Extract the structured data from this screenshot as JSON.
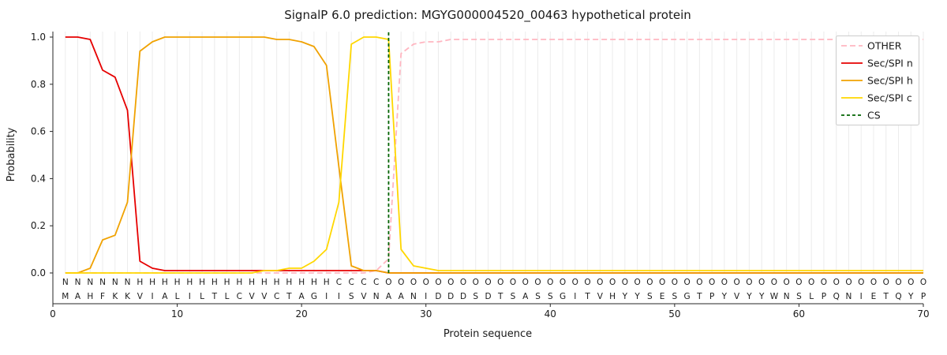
{
  "chart_data": {
    "type": "line",
    "title": "SignalP 6.0 prediction: MGYG000004520_00463 hypothetical protein",
    "xlabel": "Protein sequence",
    "ylabel": "Probability",
    "xlim": [
      0,
      70
    ],
    "ylim": [
      -0.13,
      1.02
    ],
    "xticks": [
      0,
      10,
      20,
      30,
      40,
      50,
      60,
      70
    ],
    "xtick_labels": [
      "0",
      "10",
      "20",
      "30",
      "40",
      "50",
      "60",
      "70"
    ],
    "yticks": [
      0,
      0.2,
      0.4,
      0.6,
      0.8,
      1.0
    ],
    "ytick_labels": [
      "0.0",
      "0.2",
      "0.4",
      "0.6",
      "0.8",
      "1.0"
    ],
    "grid": "vertical-line-per-residue",
    "grid_color": "#ececec",
    "legend_position": "upper-right",
    "x_start": 1,
    "series": [
      {
        "name": "OTHER",
        "color": "#ffb6c1",
        "dash": true,
        "values": [
          0,
          0,
          0,
          0,
          0,
          0,
          0,
          0,
          0,
          0,
          0,
          0,
          0,
          0,
          0,
          0,
          0,
          0,
          0,
          0,
          0,
          0,
          0,
          0,
          0,
          0.01,
          0.06,
          0.93,
          0.97,
          0.98,
          0.98,
          0.99,
          0.99,
          0.99,
          0.99,
          0.99,
          0.99,
          0.99,
          0.99,
          0.99,
          0.99,
          0.99,
          0.99,
          0.99,
          0.99,
          0.99,
          0.99,
          0.99,
          0.99,
          0.99,
          0.99,
          0.99,
          0.99,
          0.99,
          0.99,
          0.99,
          0.99,
          0.99,
          0.99,
          0.99,
          0.99,
          0.99,
          0.99,
          0.99,
          0.99,
          0.99,
          0.99,
          0.99,
          0.99,
          0.99
        ]
      },
      {
        "name": "Sec/SPI n",
        "color": "#e60000",
        "dash": false,
        "values": [
          1,
          1,
          0.99,
          0.86,
          0.83,
          0.69,
          0.05,
          0.02,
          0.01,
          0.01,
          0.01,
          0.01,
          0.01,
          0.01,
          0.01,
          0.01,
          0.01,
          0.01,
          0.01,
          0.01,
          0.01,
          0.01,
          0.01,
          0.01,
          0.01,
          0.01,
          0,
          0,
          0,
          0,
          0,
          0,
          0,
          0,
          0,
          0,
          0,
          0,
          0,
          0,
          0,
          0,
          0,
          0,
          0,
          0,
          0,
          0,
          0,
          0,
          0,
          0,
          0,
          0,
          0,
          0,
          0,
          0,
          0,
          0,
          0,
          0,
          0,
          0,
          0,
          0,
          0,
          0,
          0,
          0
        ]
      },
      {
        "name": "Sec/SPI h",
        "color": "#f0a202",
        "dash": false,
        "values": [
          0,
          0,
          0.02,
          0.14,
          0.16,
          0.3,
          0.94,
          0.98,
          1,
          1,
          1,
          1,
          1,
          1,
          1,
          1,
          1,
          0.99,
          0.99,
          0.98,
          0.96,
          0.88,
          0.45,
          0.03,
          0.01,
          0.01,
          0,
          0,
          0,
          0,
          0,
          0,
          0,
          0,
          0,
          0,
          0,
          0,
          0,
          0,
          0,
          0,
          0,
          0,
          0,
          0,
          0,
          0,
          0,
          0,
          0,
          0,
          0,
          0,
          0,
          0,
          0,
          0,
          0,
          0,
          0,
          0,
          0,
          0,
          0,
          0,
          0,
          0,
          0,
          0
        ]
      },
      {
        "name": "Sec/SPI c",
        "color": "#ffd700",
        "dash": false,
        "values": [
          0,
          0,
          0,
          0,
          0,
          0,
          0,
          0,
          0,
          0,
          0,
          0,
          0,
          0,
          0,
          0,
          0.01,
          0.01,
          0.02,
          0.02,
          0.05,
          0.1,
          0.3,
          0.97,
          1,
          1,
          0.99,
          0.1,
          0.03,
          0.02,
          0.01,
          0.01,
          0.01,
          0.01,
          0.01,
          0.01,
          0.01,
          0.01,
          0.01,
          0.01,
          0.01,
          0.01,
          0.01,
          0.01,
          0.01,
          0.01,
          0.01,
          0.01,
          0.01,
          0.01,
          0.01,
          0.01,
          0.01,
          0.01,
          0.01,
          0.01,
          0.01,
          0.01,
          0.01,
          0.01,
          0.01,
          0.01,
          0.01,
          0.01,
          0.01,
          0.01,
          0.01,
          0.01,
          0.01,
          0.01
        ]
      }
    ],
    "cs_marker": {
      "name": "CS",
      "position": 27,
      "color": "#006400",
      "dash": true
    },
    "residue_annotations": {
      "region_labels": "NNNNNNHHHHHHHHHHHHHHHHCCCCOOOOOOOOOOOOOOOOOOOOOOOOOOOOOOOOOOOOOOOOOOOO",
      "sequence": "MAHFKKVIALILTLCVVCTAGIISVNAANIDDDSDTSASSGITVHYYSESGTPYVYYWNSLPQNIETQYP",
      "region_colors": {
        "N": "#e60000",
        "H": "#f0a202",
        "C": "#ffd700",
        "O": "#999999"
      }
    }
  }
}
